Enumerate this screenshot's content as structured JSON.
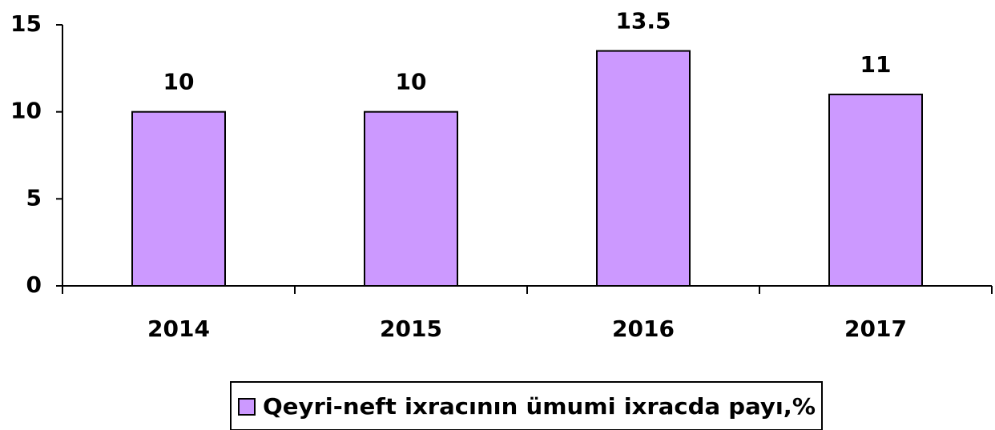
{
  "chart_data": {
    "type": "bar",
    "categories": [
      "2014",
      "2015",
      "2016",
      "2017"
    ],
    "series": [
      {
        "name": "Qeyri-neft ixracının ümumi ixracda payı,%",
        "color": "#cc99ff",
        "values": [
          10,
          10,
          13.5,
          11
        ]
      }
    ],
    "ylim": [
      0,
      15
    ],
    "yticks": [
      0,
      5,
      10,
      15
    ],
    "grid": false,
    "legend": "bottom"
  }
}
